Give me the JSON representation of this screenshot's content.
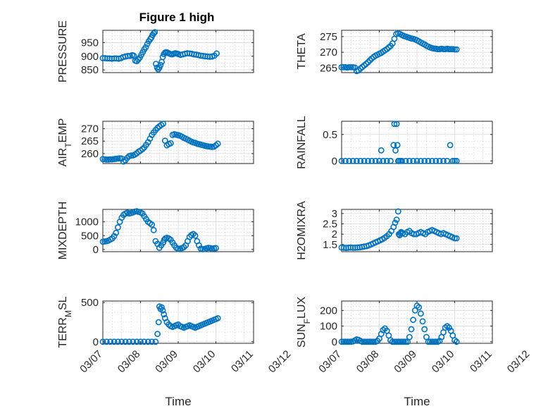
{
  "figure": {
    "title": "Figure 1 high",
    "marker_color": "#0072BD"
  },
  "chart_data": [
    {
      "type": "scatter",
      "ylabel": "PRESSURE",
      "title": "Figure 1 high",
      "ylim": [
        840,
        995
      ],
      "yticks": [
        850,
        900,
        950
      ],
      "ytick_labels": [
        "850",
        "900",
        "950"
      ],
      "xlim": [
        0,
        4
      ],
      "x": [
        0,
        0.06,
        0.12,
        0.18,
        0.24,
        0.3,
        0.36,
        0.42,
        0.48,
        0.54,
        0.6,
        0.66,
        0.72,
        0.78,
        0.82,
        0.86,
        0.9,
        0.94,
        0.98,
        1.02,
        1.06,
        1.1,
        1.14,
        1.18,
        1.22,
        1.26,
        1.29,
        1.32,
        1.35,
        1.38,
        1.41,
        1.44,
        1.47,
        1.5,
        1.53,
        1.56,
        1.59,
        1.62,
        1.65,
        1.68,
        1.72,
        1.76,
        1.8,
        1.84,
        1.88,
        1.92,
        1.96,
        2.0,
        2.06,
        2.12,
        2.18,
        2.24,
        2.3,
        2.36,
        2.42,
        2.48,
        2.54,
        2.6,
        2.66,
        2.72,
        2.78,
        2.84,
        2.9,
        2.96,
        3.02
      ],
      "y": [
        893,
        893,
        892,
        892,
        891,
        892,
        892,
        891,
        893,
        897,
        899,
        901,
        901,
        904,
        902,
        884,
        882,
        888,
        895,
        905,
        915,
        925,
        933,
        945,
        955,
        963,
        969,
        978,
        984,
        988,
        872,
        858,
        852,
        858,
        868,
        879,
        897,
        908,
        913,
        915,
        913,
        910,
        908,
        907,
        909,
        911,
        910,
        908,
        905,
        907,
        909,
        911,
        910,
        909,
        907,
        906,
        904,
        902,
        901,
        900,
        899,
        898,
        899,
        902,
        910
      ]
    },
    {
      "type": "scatter",
      "ylabel": "THETA",
      "ylim": [
        263.5,
        277
      ],
      "yticks": [
        265,
        270,
        275
      ],
      "ytick_labels": [
        "265",
        "270",
        "275"
      ],
      "xlim": [
        0,
        4
      ],
      "x": [
        0,
        0.05,
        0.1,
        0.15,
        0.2,
        0.25,
        0.3,
        0.35,
        0.4,
        0.45,
        0.5,
        0.55,
        0.6,
        0.65,
        0.7,
        0.75,
        0.8,
        0.85,
        0.9,
        0.95,
        1.0,
        1.05,
        1.1,
        1.15,
        1.2,
        1.25,
        1.3,
        1.35,
        1.4,
        1.45,
        1.5,
        1.55,
        1.6,
        1.65,
        1.7,
        1.75,
        1.8,
        1.85,
        1.9,
        1.95,
        2.0,
        2.05,
        2.1,
        2.15,
        2.2,
        2.25,
        2.3,
        2.35,
        2.4,
        2.45,
        2.5,
        2.55,
        2.6,
        2.65,
        2.7,
        2.75,
        2.8,
        2.85,
        2.9,
        2.95,
        3.0,
        3.05
      ],
      "y": [
        265.2,
        265.2,
        265.2,
        265.1,
        265.2,
        265.2,
        265.2,
        265.1,
        264.0,
        264.2,
        264.8,
        265.3,
        265.8,
        266.3,
        266.8,
        267.4,
        268.0,
        268.5,
        268.9,
        269.2,
        269.5,
        269.8,
        270.2,
        270.6,
        271.0,
        271.5,
        272.0,
        272.8,
        274.3,
        275.8,
        276.0,
        275.8,
        275.5,
        275.2,
        275.0,
        274.8,
        274.6,
        274.4,
        274.3,
        274.1,
        273.8,
        273.5,
        273.1,
        272.8,
        272.5,
        272.1,
        271.8,
        271.5,
        271.3,
        271.2,
        271.1,
        271.0,
        271.0,
        271.1,
        271.0,
        271.0,
        271.1,
        271.0,
        271.0,
        271.0,
        270.9,
        270.9
      ]
    },
    {
      "type": "scatter",
      "ylabel": "AIR_TEMP",
      "ylim": [
        256,
        273
      ],
      "yticks": [
        260,
        265,
        270
      ],
      "ytick_labels": [
        "260",
        "265",
        "270"
      ],
      "xlim": [
        0,
        4
      ],
      "x": [
        0,
        0.05,
        0.1,
        0.15,
        0.2,
        0.25,
        0.3,
        0.35,
        0.4,
        0.45,
        0.5,
        0.55,
        0.6,
        0.65,
        0.7,
        0.75,
        0.8,
        0.85,
        0.9,
        0.95,
        1.0,
        1.05,
        1.1,
        1.15,
        1.2,
        1.25,
        1.3,
        1.35,
        1.4,
        1.45,
        1.5,
        1.55,
        1.6,
        1.65,
        1.7,
        1.75,
        1.8,
        1.85,
        1.9,
        1.95,
        2.0,
        2.05,
        2.1,
        2.15,
        2.2,
        2.25,
        2.3,
        2.35,
        2.4,
        2.45,
        2.5,
        2.55,
        2.6,
        2.65,
        2.7,
        2.75,
        2.8,
        2.85,
        2.9,
        2.95,
        3.0,
        3.05
      ],
      "y": [
        257.8,
        257.7,
        257.6,
        257.6,
        257.7,
        257.7,
        257.8,
        257.9,
        258.0,
        258.1,
        258.0,
        256.8,
        257.3,
        258.3,
        259.0,
        259.2,
        259.3,
        259.6,
        260.1,
        260.8,
        261.2,
        261.8,
        262.5,
        263.5,
        264.6,
        266.0,
        267.5,
        268.5,
        269.5,
        270.3,
        271.0,
        271.5,
        272.0,
        265.2,
        263.3,
        263.8,
        264.2,
        267.5,
        267.8,
        267.6,
        267.4,
        267.2,
        266.8,
        266.3,
        266.0,
        265.6,
        265.2,
        264.8,
        264.5,
        264.3,
        264.0,
        263.8,
        263.6,
        263.4,
        263.2,
        263.0,
        262.9,
        262.8,
        262.7,
        262.8,
        263.3,
        264.0
      ]
    },
    {
      "type": "scatter",
      "ylabel": "RAINFALL",
      "ylim": [
        -0.05,
        0.75
      ],
      "yticks": [
        0,
        0.5
      ],
      "ytick_labels": [
        "0",
        "0.5"
      ],
      "xlim": [
        0,
        4
      ],
      "x": [
        0,
        0.1,
        0.2,
        0.3,
        0.4,
        0.5,
        0.6,
        0.7,
        0.8,
        0.9,
        1.0,
        1.05,
        1.1,
        1.2,
        1.3,
        1.38,
        1.4,
        1.43,
        1.46,
        1.48,
        1.5,
        1.52,
        1.56,
        1.6,
        1.7,
        1.8,
        1.9,
        2.0,
        2.1,
        2.2,
        2.3,
        2.4,
        2.5,
        2.6,
        2.7,
        2.8,
        2.88,
        2.95,
        3.0,
        3.05
      ],
      "y": [
        0,
        0,
        0,
        0,
        0,
        0,
        0,
        0,
        0,
        0,
        0,
        0.2,
        0,
        0,
        0,
        0.3,
        0.7,
        0.2,
        0.7,
        0.3,
        0,
        0,
        0,
        0,
        0,
        0,
        0,
        0,
        0,
        0,
        0,
        0,
        0,
        0,
        0,
        0,
        0.3,
        0,
        0,
        0
      ]
    },
    {
      "type": "scatter",
      "ylabel": "MIXDEPTH",
      "ylim": [
        -80,
        1450
      ],
      "yticks": [
        0,
        500,
        1000
      ],
      "ytick_labels": [
        "0",
        "500",
        "1000"
      ],
      "xlim": [
        0,
        4
      ],
      "x": [
        0,
        0.05,
        0.1,
        0.15,
        0.2,
        0.25,
        0.3,
        0.35,
        0.4,
        0.45,
        0.5,
        0.55,
        0.6,
        0.65,
        0.7,
        0.75,
        0.8,
        0.85,
        0.9,
        0.95,
        1.0,
        1.05,
        1.1,
        1.15,
        1.2,
        1.25,
        1.3,
        1.35,
        1.4,
        1.45,
        1.5,
        1.55,
        1.6,
        1.63,
        1.66,
        1.7,
        1.75,
        1.8,
        1.85,
        1.9,
        1.95,
        2.0,
        2.05,
        2.1,
        2.15,
        2.2,
        2.25,
        2.3,
        2.35,
        2.4,
        2.45,
        2.5,
        2.55,
        2.6,
        2.65,
        2.7,
        2.75,
        2.8,
        2.85,
        2.9,
        2.95,
        3.0
      ],
      "y": [
        280,
        290,
        300,
        320,
        360,
        400,
        480,
        600,
        800,
        1000,
        1150,
        1250,
        1300,
        1330,
        1300,
        1320,
        1340,
        1370,
        1380,
        1360,
        1340,
        1300,
        1200,
        1100,
        1000,
        950,
        900,
        700,
        300,
        200,
        60,
        150,
        250,
        350,
        400,
        420,
        400,
        350,
        250,
        150,
        60,
        20,
        30,
        50,
        80,
        150,
        300,
        450,
        520,
        560,
        500,
        300,
        150,
        30,
        10,
        20,
        40,
        60,
        50,
        30,
        40,
        50
      ]
    },
    {
      "type": "scatter",
      "ylabel": "H2OMIXRA",
      "ylim": [
        1.15,
        3.2
      ],
      "yticks": [
        1.5,
        2,
        2.5,
        3
      ],
      "ytick_labels": [
        "1.5",
        "2",
        "2.5",
        "3"
      ],
      "xlim": [
        0,
        4
      ],
      "x": [
        0,
        0.06,
        0.12,
        0.18,
        0.24,
        0.3,
        0.36,
        0.42,
        0.48,
        0.54,
        0.6,
        0.66,
        0.72,
        0.78,
        0.84,
        0.9,
        0.96,
        1.02,
        1.08,
        1.14,
        1.2,
        1.26,
        1.32,
        1.38,
        1.42,
        1.46,
        1.5,
        1.52,
        1.54,
        1.56,
        1.58,
        1.62,
        1.68,
        1.74,
        1.8,
        1.86,
        1.92,
        1.98,
        2.04,
        2.1,
        2.16,
        2.22,
        2.28,
        2.34,
        2.4,
        2.46,
        2.52,
        2.58,
        2.64,
        2.7,
        2.76,
        2.82,
        2.88,
        2.94,
        3.0,
        3.05
      ],
      "y": [
        1.35,
        1.34,
        1.33,
        1.34,
        1.35,
        1.34,
        1.34,
        1.35,
        1.36,
        1.38,
        1.4,
        1.42,
        1.45,
        1.5,
        1.55,
        1.6,
        1.65,
        1.7,
        1.75,
        1.82,
        1.9,
        2.0,
        2.15,
        2.35,
        2.55,
        2.7,
        3.1,
        2.0,
        1.95,
        2.05,
        2.1,
        2.05,
        2.0,
        2.1,
        2.15,
        2.05,
        2.0,
        2.0,
        2.05,
        2.1,
        2.05,
        2.0,
        2.1,
        2.15,
        2.2,
        2.15,
        2.1,
        2.05,
        2.0,
        2.05,
        2.0,
        1.95,
        1.9,
        1.85,
        1.8,
        1.8
      ]
    },
    {
      "type": "scatter",
      "ylabel": "TERR_MSL",
      "ylim": [
        -20,
        520
      ],
      "yticks": [
        0,
        500
      ],
      "ytick_labels": [
        "0",
        "500"
      ],
      "xlim": [
        0,
        4
      ],
      "x": [
        0,
        0.1,
        0.2,
        0.3,
        0.4,
        0.5,
        0.6,
        0.7,
        0.8,
        0.9,
        1.0,
        1.1,
        1.2,
        1.3,
        1.4,
        1.45,
        1.48,
        1.5,
        1.53,
        1.56,
        1.59,
        1.62,
        1.65,
        1.7,
        1.75,
        1.8,
        1.85,
        1.9,
        1.95,
        2.0,
        2.05,
        2.1,
        2.15,
        2.2,
        2.25,
        2.3,
        2.35,
        2.4,
        2.45,
        2.5,
        2.55,
        2.6,
        2.65,
        2.7,
        2.75,
        2.8,
        2.85,
        2.9,
        2.95,
        3.0,
        3.05
      ],
      "y": [
        0,
        0,
        0,
        0,
        0,
        0,
        0,
        0,
        0,
        0,
        0,
        0,
        0,
        0,
        0,
        100,
        250,
        450,
        420,
        440,
        400,
        350,
        300,
        250,
        220,
        200,
        190,
        200,
        210,
        220,
        200,
        190,
        180,
        190,
        200,
        210,
        200,
        190,
        180,
        190,
        200,
        210,
        220,
        230,
        240,
        250,
        260,
        270,
        280,
        290,
        300
      ]
    },
    {
      "type": "scatter",
      "ylabel": "SUN_FLUX",
      "ylim": [
        -10,
        260
      ],
      "yticks": [
        0,
        100,
        200
      ],
      "ytick_labels": [
        "0",
        "100",
        "200"
      ],
      "xlim": [
        0,
        4
      ],
      "x": [
        0,
        0.05,
        0.1,
        0.15,
        0.2,
        0.25,
        0.3,
        0.35,
        0.4,
        0.45,
        0.5,
        0.55,
        0.6,
        0.65,
        0.7,
        0.75,
        0.8,
        0.85,
        0.9,
        0.95,
        1.0,
        1.05,
        1.1,
        1.15,
        1.2,
        1.25,
        1.3,
        1.35,
        1.4,
        1.45,
        1.5,
        1.55,
        1.6,
        1.65,
        1.7,
        1.75,
        1.8,
        1.85,
        1.9,
        1.95,
        2.0,
        2.05,
        2.1,
        2.15,
        2.2,
        2.25,
        2.3,
        2.35,
        2.4,
        2.45,
        2.5,
        2.55,
        2.6,
        2.65,
        2.7,
        2.75,
        2.8,
        2.85,
        2.9,
        2.95,
        3.0,
        3.05
      ],
      "y": [
        0,
        0,
        0,
        0,
        0,
        0,
        2,
        8,
        15,
        12,
        5,
        0,
        0,
        0,
        0,
        0,
        0,
        0,
        0,
        5,
        20,
        50,
        75,
        85,
        70,
        40,
        10,
        0,
        0,
        0,
        0,
        0,
        0,
        0,
        0,
        0,
        30,
        80,
        140,
        200,
        230,
        220,
        180,
        130,
        80,
        30,
        0,
        0,
        0,
        0,
        0,
        0,
        5,
        30,
        60,
        90,
        100,
        90,
        70,
        40,
        10,
        0
      ]
    }
  ],
  "shared_x": {
    "xlabel": "Time",
    "xtick_labels": [
      "03/07",
      "03/08",
      "03/09",
      "03/10",
      "03/11",
      "03/12"
    ]
  }
}
